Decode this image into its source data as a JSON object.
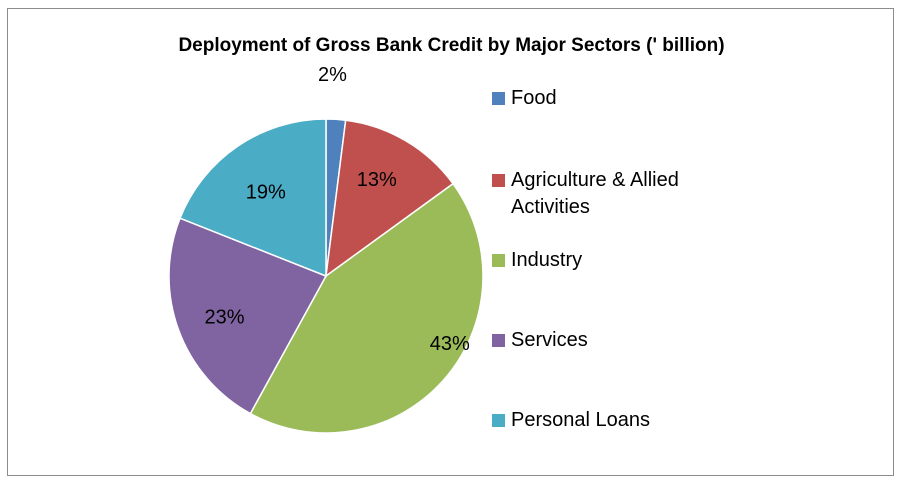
{
  "chart_data": {
    "type": "pie",
    "title": "Deployment of Gross Bank Credit by Major Sectors (' billion)",
    "categories": [
      "Food",
      "Agriculture & Allied Activities",
      "Industry",
      "Services",
      "Personal Loans"
    ],
    "values": [
      2,
      13,
      43,
      23,
      19
    ],
    "data_labels": [
      "2%",
      "13%",
      "43%",
      "23%",
      "19%"
    ],
    "colors": [
      "#4f81bd",
      "#c0504d",
      "#9bbb59",
      "#8064a2",
      "#4bacc6"
    ],
    "legend_position": "right"
  }
}
